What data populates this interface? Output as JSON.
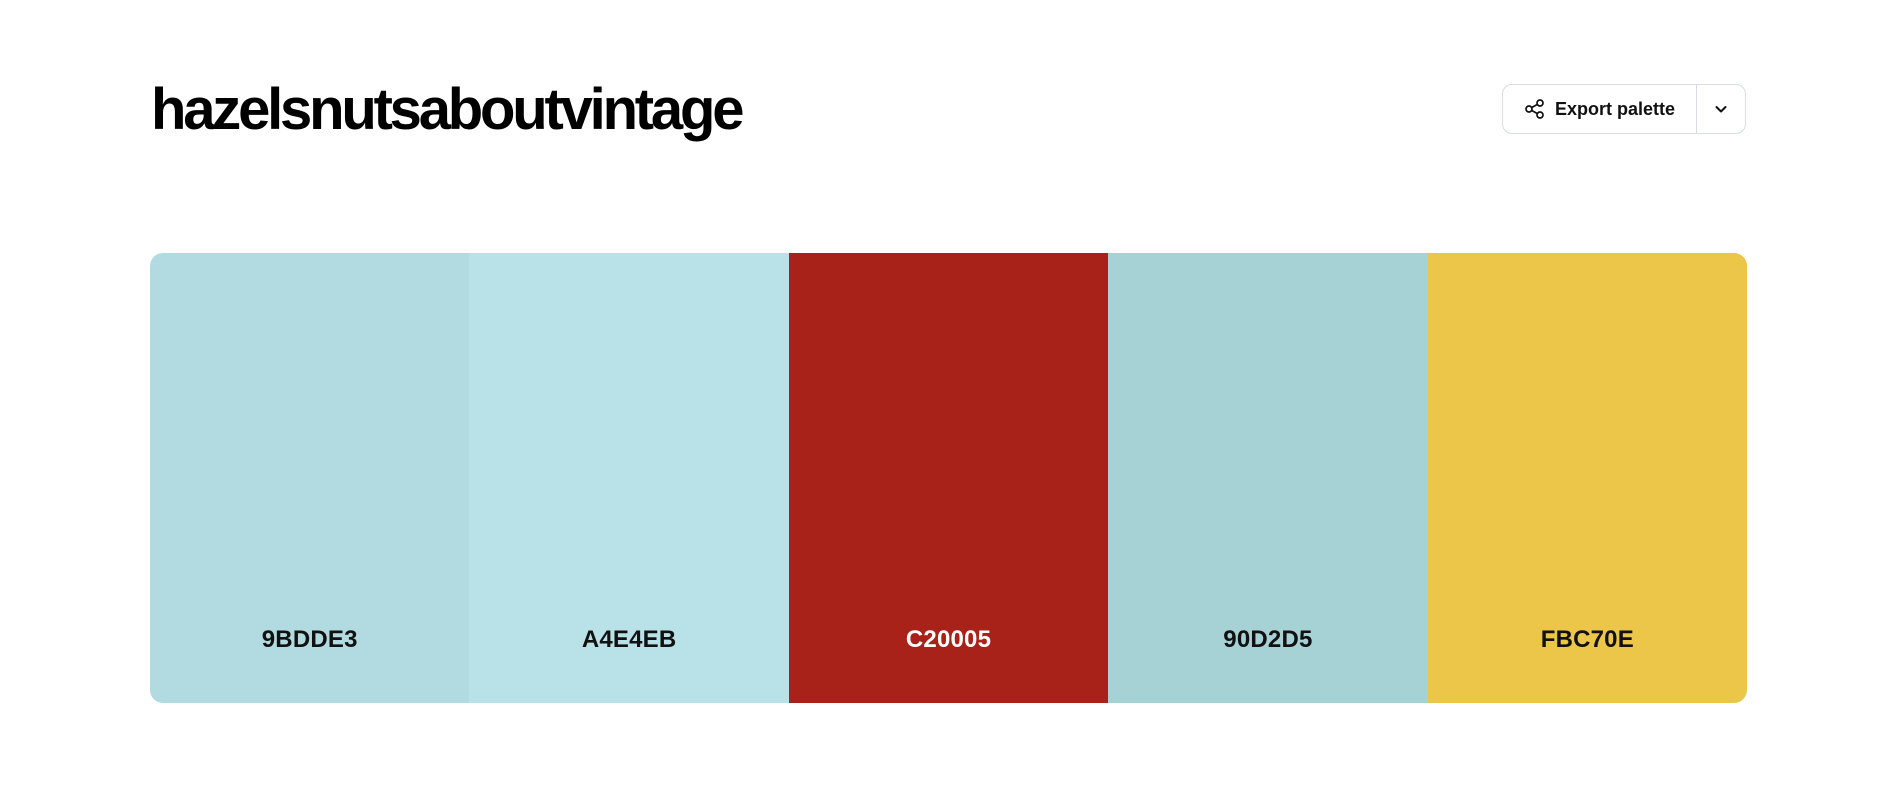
{
  "header": {
    "title": "hazelsnutsaboutvintage"
  },
  "toolbar": {
    "export_label": "Export palette",
    "export_icon": "share-icon",
    "dropdown_icon": "chevron-down-icon"
  },
  "palette": {
    "swatches": [
      {
        "hex": "9BDDE3",
        "display_color": "#b1dbe1",
        "text_color": "#111111"
      },
      {
        "hex": "A4E4EB",
        "display_color": "#b8e2e8",
        "text_color": "#111111"
      },
      {
        "hex": "C20005",
        "display_color": "#a8221a",
        "text_color": "#ffffff"
      },
      {
        "hex": "90D2D5",
        "display_color": "#a6d1d5",
        "text_color": "#111111"
      },
      {
        "hex": "FBC70E",
        "display_color": "#ebc648",
        "text_color": "#111111"
      }
    ]
  }
}
